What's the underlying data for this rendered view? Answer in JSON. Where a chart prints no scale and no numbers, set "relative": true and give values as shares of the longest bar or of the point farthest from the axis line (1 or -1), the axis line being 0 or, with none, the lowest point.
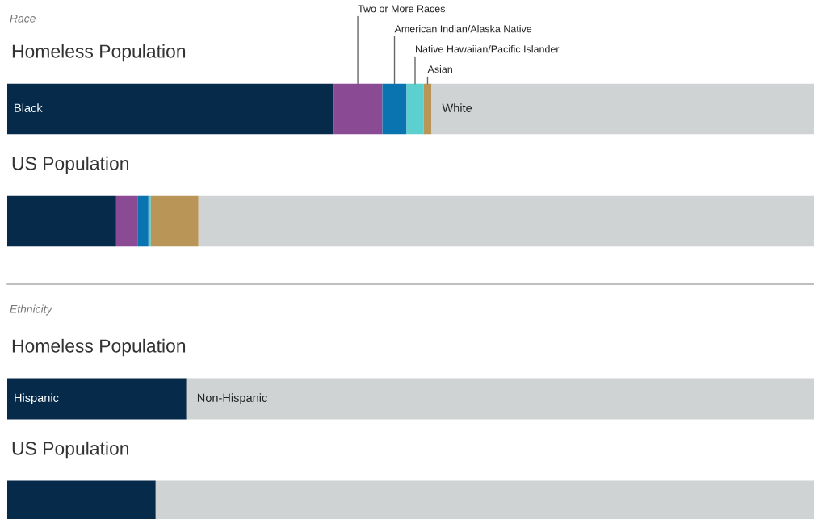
{
  "chart_data": [
    {
      "type": "bar",
      "title": "Race",
      "orientation": "horizontal",
      "stacked": true,
      "relative": true,
      "categories": [
        "Homeless Population",
        "US Population"
      ],
      "series": [
        {
          "name": "Black",
          "color": "#062a4a",
          "values": [
            0.404,
            0.135
          ]
        },
        {
          "name": "Two or More Races",
          "color": "#8b4a94",
          "values": [
            0.061,
            0.027
          ]
        },
        {
          "name": "American Indian/Alaska Native",
          "color": "#0a74b0",
          "values": [
            0.03,
            0.013
          ]
        },
        {
          "name": "Native Hawaiian/Pacific Islander",
          "color": "#5ccfcf",
          "values": [
            0.021,
            0.003
          ]
        },
        {
          "name": "Asian",
          "color": "#b99657",
          "values": [
            0.01,
            0.059
          ]
        },
        {
          "name": "White",
          "color": "#d0d3d4",
          "values": [
            0.474,
            0.763
          ]
        }
      ]
    },
    {
      "type": "bar",
      "title": "Ethnicity",
      "orientation": "horizontal",
      "stacked": true,
      "relative": true,
      "categories": [
        "Homeless Population",
        "US Population"
      ],
      "series": [
        {
          "name": "Hispanic",
          "color": "#062a4a",
          "values": [
            0.222,
            0.184
          ]
        },
        {
          "name": "Non-Hispanic",
          "color": "#d0d3d4",
          "values": [
            0.778,
            0.816
          ]
        }
      ]
    }
  ]
}
